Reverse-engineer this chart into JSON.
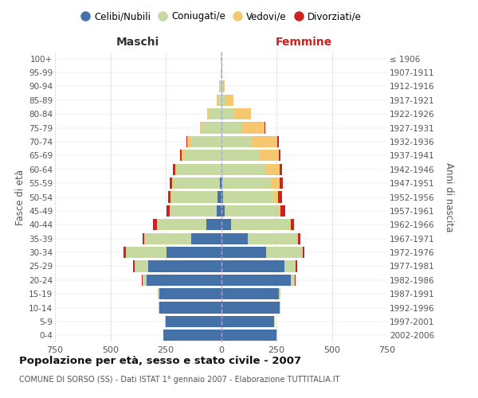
{
  "age_groups": [
    "0-4",
    "5-9",
    "10-14",
    "15-19",
    "20-24",
    "25-29",
    "30-34",
    "35-39",
    "40-44",
    "45-49",
    "50-54",
    "55-59",
    "60-64",
    "65-69",
    "70-74",
    "75-79",
    "80-84",
    "85-89",
    "90-94",
    "95-99",
    "100+"
  ],
  "birth_years": [
    "2002-2006",
    "1997-2001",
    "1992-1996",
    "1987-1991",
    "1982-1986",
    "1977-1981",
    "1972-1976",
    "1967-1971",
    "1962-1966",
    "1957-1961",
    "1952-1956",
    "1947-1951",
    "1942-1946",
    "1937-1941",
    "1932-1936",
    "1927-1931",
    "1922-1926",
    "1917-1921",
    "1912-1916",
    "1907-1911",
    "≤ 1906"
  ],
  "males": {
    "celibe": [
      260,
      250,
      280,
      280,
      335,
      330,
      245,
      135,
      65,
      20,
      15,
      5,
      0,
      0,
      0,
      0,
      0,
      0,
      0,
      0,
      0
    ],
    "coniugato": [
      2,
      2,
      2,
      5,
      20,
      60,
      185,
      210,
      225,
      210,
      210,
      210,
      200,
      165,
      135,
      85,
      55,
      15,
      5,
      2,
      2
    ],
    "vedovo": [
      0,
      0,
      0,
      1,
      1,
      1,
      1,
      1,
      1,
      2,
      4,
      6,
      8,
      14,
      18,
      12,
      8,
      5,
      3,
      0,
      0
    ],
    "divorziato": [
      0,
      0,
      0,
      0,
      3,
      5,
      8,
      10,
      15,
      15,
      12,
      10,
      8,
      5,
      3,
      0,
      0,
      0,
      0,
      0,
      0
    ]
  },
  "females": {
    "nubile": [
      250,
      240,
      265,
      260,
      315,
      285,
      205,
      120,
      45,
      15,
      10,
      5,
      0,
      0,
      0,
      0,
      0,
      0,
      0,
      0,
      0
    ],
    "coniugata": [
      2,
      2,
      2,
      5,
      15,
      50,
      160,
      225,
      265,
      245,
      230,
      220,
      205,
      170,
      140,
      90,
      60,
      20,
      5,
      2,
      2
    ],
    "vedova": [
      0,
      0,
      0,
      2,
      2,
      2,
      2,
      2,
      4,
      8,
      18,
      38,
      58,
      90,
      115,
      105,
      75,
      35,
      12,
      2,
      0
    ],
    "divorziata": [
      0,
      0,
      0,
      0,
      3,
      5,
      8,
      10,
      15,
      20,
      18,
      15,
      12,
      8,
      5,
      3,
      0,
      0,
      0,
      0,
      0
    ]
  },
  "colors": {
    "celibe": "#4472a8",
    "coniugato": "#c5d9a0",
    "vedovo": "#f5c76e",
    "divorziato": "#cc2222"
  },
  "title": "Popolazione per età, sesso e stato civile - 2007",
  "subtitle": "COMUNE DI SORSO (SS) - Dati ISTAT 1° gennaio 2007 - Elaborazione TUTTITALIA.IT",
  "xlabel_left": "Maschi",
  "xlabel_right": "Femmine",
  "ylabel_left": "Fasce di età",
  "ylabel_right": "Anni di nascita",
  "xlim": 750,
  "legend_labels": [
    "Celibi/Nubili",
    "Coniugati/e",
    "Vedovi/e",
    "Divorziati/e"
  ],
  "background_color": "#ffffff",
  "grid_color": "#cccccc"
}
